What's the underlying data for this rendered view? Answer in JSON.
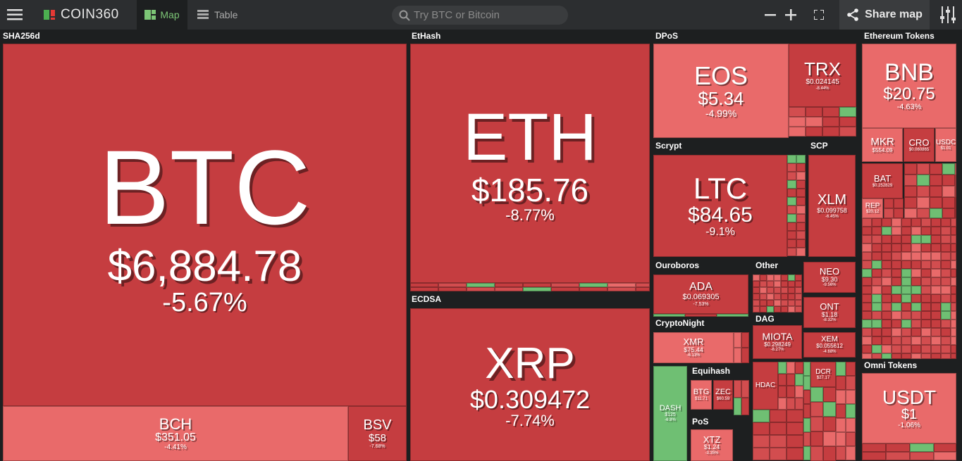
{
  "header": {
    "logo": "COIN360",
    "tabs": [
      "Map",
      "Table"
    ],
    "search_placeholder": "Try BTC or Bitcoin",
    "share": "Share map"
  },
  "groups": [
    {
      "label": "SHA256d"
    },
    {
      "label": "EtHash"
    },
    {
      "label": "ECDSA"
    },
    {
      "label": "DPoS"
    },
    {
      "label": "Ethereum Tokens"
    },
    {
      "label": "Scrypt"
    },
    {
      "label": "SCP"
    },
    {
      "label": "Ouroboros"
    },
    {
      "label": "Other"
    },
    {
      "label": "CryptoNight"
    },
    {
      "label": "DAG"
    },
    {
      "label": "Equihash"
    },
    {
      "label": "PoS"
    },
    {
      "label": "Omni Tokens"
    }
  ],
  "tiles": [
    {
      "symbol": "BTC",
      "price": "$6,884.78",
      "change": "-5.67%"
    },
    {
      "symbol": "BCH",
      "price": "$351.05",
      "change": "-4.41%"
    },
    {
      "symbol": "BSV",
      "price": "$58",
      "change": "-7.68%"
    },
    {
      "symbol": "ETH",
      "price": "$185.76",
      "change": "-8.77%"
    },
    {
      "symbol": "XRP",
      "price": "$0.309472",
      "change": "-7.74%"
    },
    {
      "symbol": "EOS",
      "price": "$5.34",
      "change": "-4.99%"
    },
    {
      "symbol": "TRX",
      "price": "$0.024145",
      "change": "-8.44%"
    },
    {
      "symbol": "BNB",
      "price": "$20.75",
      "change": "-4.63%"
    },
    {
      "symbol": "MKR",
      "price": "$554.09"
    },
    {
      "symbol": "CRO",
      "price": "$0.060865"
    },
    {
      "symbol": "USDC",
      "price": "$1.01"
    },
    {
      "symbol": "BAT",
      "price": "$0.252829"
    },
    {
      "symbol": "REP",
      "price": "$20.12"
    },
    {
      "symbol": "LTC",
      "price": "$84.65",
      "change": "-9.1%"
    },
    {
      "symbol": "XLM",
      "price": "$0.099758",
      "change": "-6.45%"
    },
    {
      "symbol": "ADA",
      "price": "$0.069305",
      "change": "-7.53%"
    },
    {
      "symbol": "NEO",
      "price": "$9.30",
      "change": "-9.56%"
    },
    {
      "symbol": "ONT",
      "price": "$1.18",
      "change": "-8.32%"
    },
    {
      "symbol": "XEM",
      "price": "$0.055612",
      "change": "-4.68%"
    },
    {
      "symbol": "XMR",
      "price": "$75.44",
      "change": "-6.13%"
    },
    {
      "symbol": "MIOTA",
      "price": "$0.298249",
      "change": "-8.27%"
    },
    {
      "symbol": "DASH",
      "price": "$125",
      "change": "-6.8%"
    },
    {
      "symbol": "BTG",
      "price": "$11.71"
    },
    {
      "symbol": "ZEC",
      "price": "$60.59"
    },
    {
      "symbol": "HDAC"
    },
    {
      "symbol": "DCR",
      "price": "$27.17"
    },
    {
      "symbol": "XTZ",
      "price": "$1.24",
      "change": "-3.35%"
    },
    {
      "symbol": "USDT",
      "price": "$1",
      "change": "-1.06%"
    }
  ]
}
